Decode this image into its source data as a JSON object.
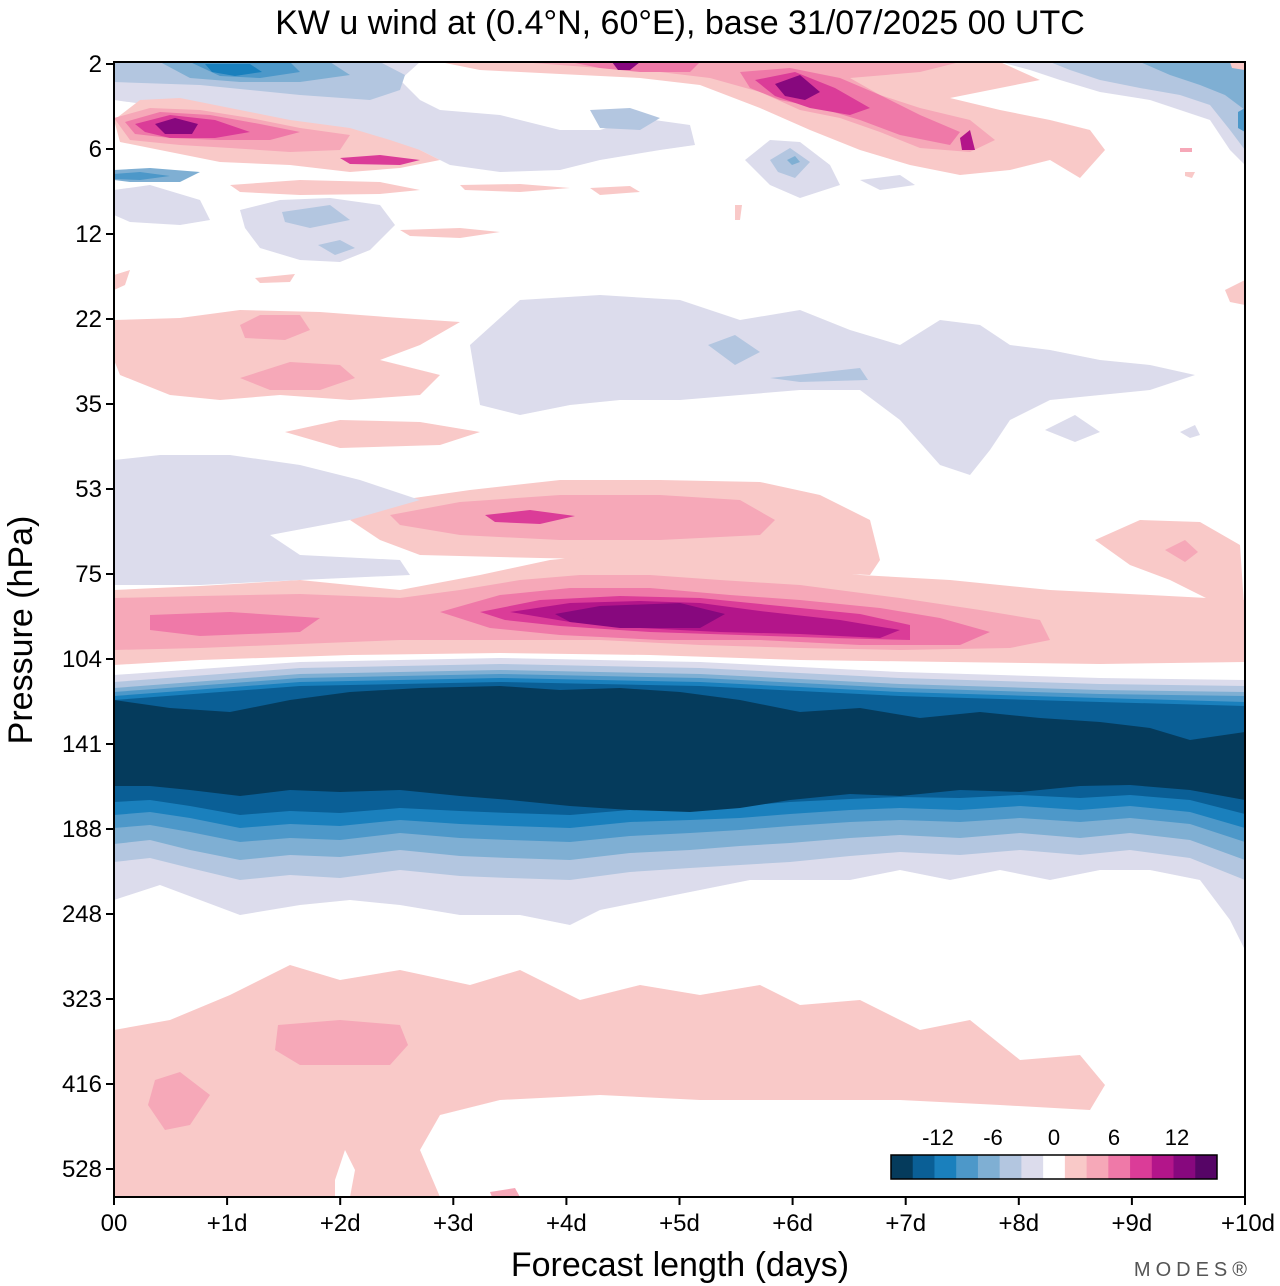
{
  "chart_data": {
    "type": "heatmap",
    "title": "KW u wind at (0.4°N, 60°E),  base 31/07/2025  00 UTC",
    "xlabel": "Forecast length (days)",
    "ylabel": "Pressure (hPa)",
    "x_ticks": [
      "00",
      "+1d",
      "+2d",
      "+3d",
      "+4d",
      "+5d",
      "+6d",
      "+7d",
      "+8d",
      "+9d",
      "+10d"
    ],
    "xlim_days": [
      0,
      10
    ],
    "y_ticks": [
      "2",
      "6",
      "12",
      "22",
      "35",
      "53",
      "75",
      "104",
      "141",
      "188",
      "248",
      "323",
      "416",
      "528"
    ],
    "y_scale": "log-pressure, inverted (2 hPa at top)",
    "colorbar": {
      "tick_labels": [
        "-12",
        "-6",
        "0",
        "6",
        "12"
      ],
      "levels": [
        -14,
        -12,
        -10,
        -8,
        -6,
        -4,
        -2,
        -1,
        1,
        2,
        4,
        6,
        8,
        10,
        12,
        14
      ],
      "colors": [
        "#053b5c",
        "#0a5f96",
        "#1a80bd",
        "#4d98c9",
        "#7fafd3",
        "#b3c6e0",
        "#dcdcec",
        "#ffffff",
        "#f9c9c8",
        "#f6a8b8",
        "#ef79a8",
        "#db3c98",
        "#b3158a",
        "#87087e",
        "#560566"
      ]
    },
    "features": [
      {
        "name": "strong easterly jet",
        "p_range_hPa": [
          115,
          185
        ],
        "days": [
          0,
          10
        ],
        "u_ms": -14
      },
      {
        "name": "westerly max near 90 hPa",
        "p_center_hPa": 90,
        "days": [
          3.5,
          6.5
        ],
        "u_ms": 12
      },
      {
        "name": "weak westerlies upper troposphere",
        "p_range_hPa": [
          300,
          530
        ],
        "days": [
          0,
          9
        ],
        "u_ms": 2
      },
      {
        "name": "upper stratospheric westerly",
        "p_center_hPa": 4,
        "days": [
          0,
          2.5
        ],
        "u_ms": 10
      },
      {
        "name": "upper stratospheric westerly",
        "p_center_hPa": 2.5,
        "days": [
          5.5,
          7
        ],
        "u_ms": 10
      }
    ]
  },
  "brand": "MODES®"
}
